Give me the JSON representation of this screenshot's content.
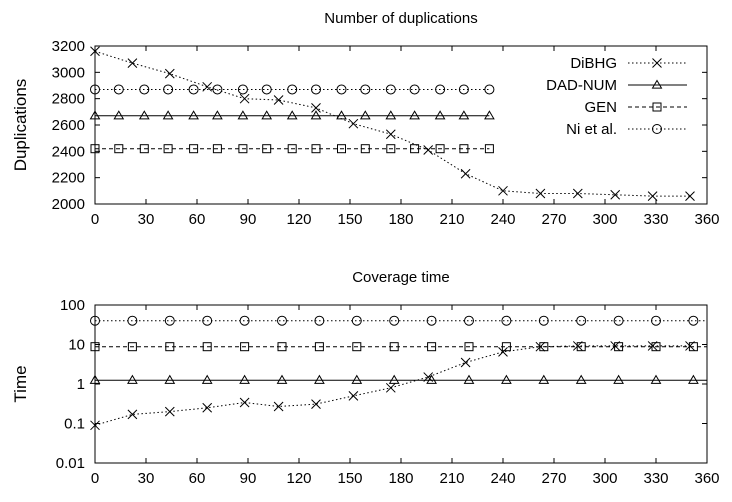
{
  "chart_data": [
    {
      "type": "line",
      "title": "Number of duplications",
      "xlabel": "",
      "ylabel": "Duplications",
      "xlim": [
        0,
        360
      ],
      "ylim": [
        2000,
        3200
      ],
      "xticks": [
        "0",
        "30",
        "60",
        "90",
        "120",
        "150",
        "180",
        "210",
        "240",
        "270",
        "300",
        "330",
        "360"
      ],
      "yticks": [
        "2000",
        "2200",
        "2400",
        "2600",
        "2800",
        "3000",
        "3200"
      ],
      "grid": false,
      "legend_position": "top-right",
      "series": [
        {
          "name": "DiBHG",
          "marker": "x",
          "dash": "dotted",
          "x": [
            0,
            22,
            44,
            66,
            88,
            108,
            130,
            152,
            174,
            196,
            218,
            240,
            262,
            284,
            306,
            328,
            350
          ],
          "y": [
            3160,
            3070,
            2990,
            2890,
            2800,
            2790,
            2730,
            2610,
            2530,
            2410,
            2230,
            2100,
            2080,
            2080,
            2070,
            2060,
            2060
          ]
        },
        {
          "name": "DAD-NUM",
          "marker": "triangle",
          "dash": "solid",
          "x": [
            0,
            14,
            29,
            43,
            58,
            72,
            87,
            101,
            116,
            130,
            145,
            159,
            174,
            188,
            203,
            217,
            232
          ],
          "y": [
            2670,
            2670,
            2670,
            2670,
            2670,
            2670,
            2670,
            2670,
            2670,
            2670,
            2670,
            2670,
            2670,
            2670,
            2670,
            2670,
            2670
          ]
        },
        {
          "name": "GEN",
          "marker": "square",
          "dash": "dashed",
          "x": [
            0,
            14,
            29,
            43,
            58,
            72,
            87,
            101,
            116,
            130,
            145,
            159,
            174,
            188,
            203,
            217,
            232
          ],
          "y": [
            2420,
            2420,
            2420,
            2420,
            2420,
            2420,
            2420,
            2420,
            2420,
            2420,
            2420,
            2420,
            2420,
            2420,
            2420,
            2420,
            2420
          ]
        },
        {
          "name": "Ni et al.",
          "marker": "circle",
          "dash": "dotted",
          "x": [
            0,
            14,
            29,
            43,
            58,
            72,
            87,
            101,
            116,
            130,
            145,
            159,
            174,
            188,
            203,
            217,
            232
          ],
          "y": [
            2870,
            2870,
            2870,
            2870,
            2870,
            2870,
            2870,
            2870,
            2870,
            2870,
            2870,
            2870,
            2870,
            2870,
            2870,
            2870,
            2870
          ]
        }
      ]
    },
    {
      "type": "line",
      "title": "Coverage time",
      "xlabel": "",
      "ylabel": "Time",
      "xlim": [
        0,
        360
      ],
      "ylim": [
        0.01,
        100
      ],
      "yscale": "log",
      "xticks": [
        "0",
        "30",
        "60",
        "90",
        "120",
        "150",
        "180",
        "210",
        "240",
        "270",
        "300",
        "330",
        "360"
      ],
      "yticks": [
        "0.01",
        "0.1",
        "1",
        "10",
        "100"
      ],
      "grid": false,
      "series": [
        {
          "name": "DiBHG",
          "marker": "x",
          "dash": "dotted",
          "x": [
            0,
            22,
            44,
            66,
            88,
            108,
            130,
            152,
            174,
            196,
            218,
            240,
            262,
            284,
            306,
            328,
            350
          ],
          "y": [
            0.09,
            0.17,
            0.2,
            0.25,
            0.34,
            0.27,
            0.31,
            0.5,
            0.8,
            1.5,
            3.5,
            6.5,
            8.8,
            9.2,
            9.2,
            9.2,
            9.2
          ]
        },
        {
          "name": "DAD-NUM",
          "marker": "triangle",
          "dash": "solid",
          "x": [
            0,
            22,
            44,
            66,
            88,
            110,
            132,
            154,
            176,
            198,
            220,
            242,
            264,
            286,
            308,
            330,
            352
          ],
          "y": [
            1.25,
            1.25,
            1.25,
            1.25,
            1.25,
            1.25,
            1.25,
            1.25,
            1.25,
            1.25,
            1.25,
            1.25,
            1.25,
            1.25,
            1.25,
            1.25,
            1.25
          ]
        },
        {
          "name": "GEN",
          "marker": "square",
          "dash": "dashed",
          "x": [
            0,
            22,
            44,
            66,
            88,
            110,
            132,
            154,
            176,
            198,
            220,
            242,
            264,
            286,
            308,
            330,
            352
          ],
          "y": [
            8.8,
            8.8,
            8.8,
            8.8,
            8.8,
            8.8,
            8.8,
            8.8,
            8.8,
            8.8,
            8.8,
            8.8,
            8.8,
            8.8,
            8.8,
            8.8,
            8.8
          ]
        },
        {
          "name": "Ni et al.",
          "marker": "circle",
          "dash": "dotted",
          "x": [
            0,
            22,
            44,
            66,
            88,
            110,
            132,
            154,
            176,
            198,
            220,
            242,
            264,
            286,
            308,
            330,
            352
          ],
          "y": [
            40,
            40,
            40,
            40,
            40,
            40,
            40,
            40,
            40,
            40,
            40,
            40,
            40,
            40,
            40,
            40,
            40
          ]
        }
      ]
    }
  ]
}
